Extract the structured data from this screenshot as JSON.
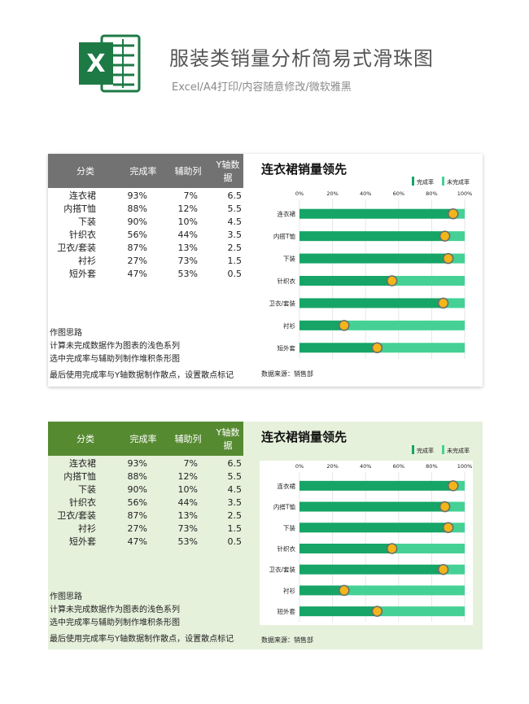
{
  "header": {
    "title": "服装类销量分析简易式滑珠图",
    "subtitle": "Excel/A4打印/内容随意修改/微软雅黑",
    "logo_letter": "X"
  },
  "colors": {
    "done": "#16a566",
    "remaining": "#45d195",
    "dot": "#f2b51a",
    "dot_stroke": "#6b6b6b",
    "card1_header": "#727272",
    "card2_header": "#568a31",
    "card2_bg": "#e6f1dc"
  },
  "table": {
    "headers": [
      "分类",
      "完成率",
      "辅助列",
      "Y轴数据"
    ],
    "rows": [
      [
        "连衣裙",
        "93%",
        "7%",
        "6.5"
      ],
      [
        "内搭T恤",
        "88%",
        "12%",
        "5.5"
      ],
      [
        "下装",
        "90%",
        "10%",
        "4.5"
      ],
      [
        "针织衣",
        "56%",
        "44%",
        "3.5"
      ],
      [
        "卫衣/套装",
        "87%",
        "13%",
        "2.5"
      ],
      [
        "衬衫",
        "27%",
        "73%",
        "1.5"
      ],
      [
        "短外套",
        "47%",
        "53%",
        "0.5"
      ]
    ]
  },
  "notes": {
    "heading": "作图思路",
    "line1": "计算未完成数据作为图表的浅色系列",
    "line2": "选中完成率与辅助列制作堆积条形图",
    "line3": "最后使用完成率与Y轴数据制作散点，设置散点标记"
  },
  "chart_data": {
    "type": "bar",
    "title": "连衣裙销量领先",
    "categories": [
      "连衣裙",
      "内搭T恤",
      "下装",
      "针织衣",
      "卫衣/套装",
      "衬衫",
      "短外套"
    ],
    "series": [
      {
        "name": "完成率",
        "values": [
          93,
          88,
          90,
          56,
          87,
          27,
          47
        ]
      },
      {
        "name": "未完成率",
        "values": [
          7,
          12,
          10,
          44,
          13,
          73,
          53
        ]
      }
    ],
    "dots": [
      93,
      88,
      90,
      56,
      87,
      27,
      47
    ],
    "xlim": [
      0,
      100
    ],
    "xticks": [
      "0%",
      "20%",
      "40%",
      "60%",
      "80%",
      "100%"
    ],
    "stacked": true,
    "orientation": "horizontal",
    "legend": "top-right",
    "source": "数据来源：销售部"
  }
}
